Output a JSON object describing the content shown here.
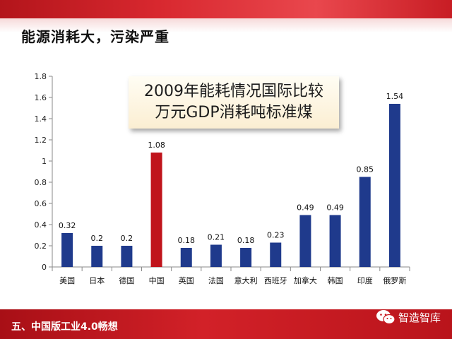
{
  "slide": {
    "title": "能源消耗大，污染严重",
    "footer": "五、中国版工业4.0畅想",
    "watermark": "智造智库"
  },
  "chart_data": {
    "type": "bar",
    "title": "2009年能耗情况国际比较",
    "subtitle": "万元GDP消耗吨标准煤",
    "categories": [
      "美国",
      "日本",
      "德国",
      "中国",
      "英国",
      "法国",
      "意大利",
      "西班牙",
      "加拿大",
      "韩国",
      "印度",
      "俄罗斯"
    ],
    "values": [
      0.32,
      0.2,
      0.2,
      1.08,
      0.18,
      0.21,
      0.18,
      0.23,
      0.49,
      0.49,
      0.85,
      1.54
    ],
    "ylim": [
      0,
      1.8
    ],
    "yticks": [
      "0",
      "0.2",
      "0.4",
      "0.6",
      "0.8",
      "1",
      "1.2",
      "1.4",
      "1.6",
      "1.8"
    ],
    "xlabel": "",
    "ylabel": "",
    "grid": false,
    "bar_color": "#1f3a8c",
    "highlight_color": "#c0141c",
    "highlight_category": "中国"
  }
}
